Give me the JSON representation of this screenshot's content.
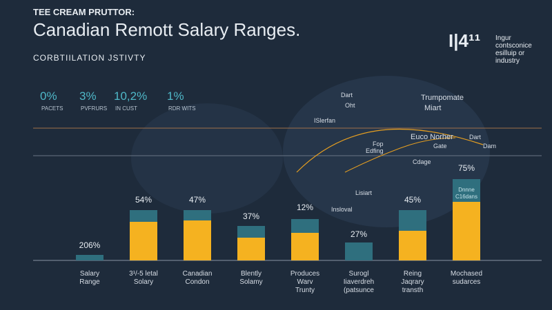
{
  "header": {
    "kicker": "TEE CREAM PRUTTOR:",
    "title": "Canadian Remott Salary Ranges.",
    "subtitle": "CORBTIILATION JSTIVTY",
    "badge": "I|4¹¹",
    "badge_note": [
      "Ingur",
      "contsconice",
      "esilluip or",
      "industry"
    ]
  },
  "stats": [
    {
      "value": "0%",
      "label": "PACETS"
    },
    {
      "value": "3%",
      "label": "PVFRURS"
    },
    {
      "value": "10,2%",
      "label": "IN CUST"
    },
    {
      "value": "1%",
      "label": "RDR WITS"
    }
  ],
  "map_labels": [
    "Dart",
    "Oht",
    "ISlerfan",
    "Trumpomate",
    "Miart",
    "Euco Norher",
    "Fop",
    "Edfing",
    "Cdage",
    "Gate",
    "Dart",
    "Dam",
    "Lisiart",
    "Insloval"
  ],
  "bars": [
    {
      "label": "206%",
      "category": [
        "Salary",
        "Range"
      ]
    },
    {
      "label": "54%",
      "category": [
        "3¹/-5 letal",
        "Solary"
      ]
    },
    {
      "label": "47%",
      "category": [
        "Canadian",
        "Condon"
      ]
    },
    {
      "label": "37%",
      "category": [
        "Blently",
        "Solamy"
      ]
    },
    {
      "label": "12%",
      "category": [
        "Produces",
        "Warv",
        "Trunty"
      ]
    },
    {
      "label": "27%",
      "category": [
        "Surogl",
        "Iiaverdreh",
        "(patsunce"
      ]
    },
    {
      "label": "45%",
      "category": [
        "Reing",
        "Jaqrary",
        "transth"
      ]
    },
    {
      "label": "75%",
      "category": [
        "Mochased",
        "sudarces"
      ],
      "inner": [
        "Dnnne",
        "C16dans"
      ]
    }
  ]
}
